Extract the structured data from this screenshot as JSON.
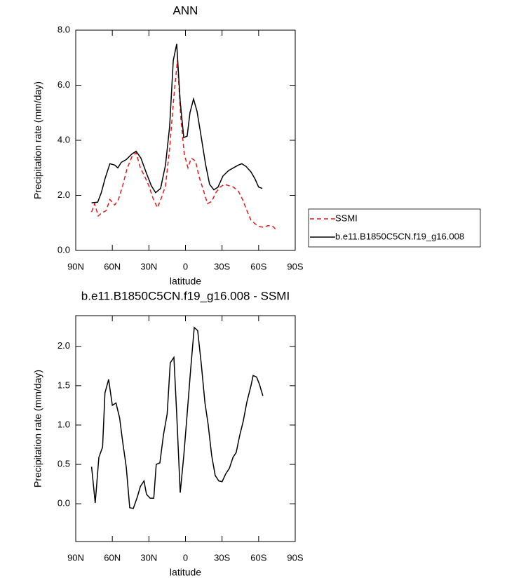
{
  "chart_data": [
    {
      "type": "line",
      "title": "ANN",
      "ylabel": "Precipitation rate (mm/day)",
      "xlabel": "latitude",
      "xlim": [
        90,
        -90
      ],
      "xticks": [
        {
          "value": 90,
          "label": "90N"
        },
        {
          "value": 60,
          "label": "60N"
        },
        {
          "value": 30,
          "label": "30N"
        },
        0,
        {
          "value": -30,
          "label": "30S"
        },
        {
          "value": -60,
          "label": "60S"
        },
        {
          "value": -90,
          "label": "90S"
        }
      ],
      "ylim": [
        0,
        8
      ],
      "yticks": [
        {
          "value": 0,
          "label": "0.0"
        },
        {
          "value": 2,
          "label": "2.0"
        },
        {
          "value": 4,
          "label": "4.0"
        },
        {
          "value": 6,
          "label": "6.0"
        },
        {
          "value": 8,
          "label": "8.0"
        }
      ],
      "legend": "right",
      "series": [
        {
          "name": "SSMI",
          "color": "#e41a1c",
          "dashed": true,
          "x": [
            77,
            74.5,
            71.6,
            69,
            65,
            62,
            58,
            55,
            51.5,
            48,
            44,
            40.5,
            37,
            33.6,
            30,
            26.7,
            23,
            19.8,
            16.4,
            13,
            9.5,
            6.6,
            3.8,
            1,
            -2,
            -4.7,
            -8.2,
            -11,
            -14.6,
            -18,
            -21.5,
            -24.9,
            -28.4,
            -31.8,
            -35.8,
            -39.3,
            -43.4,
            -46.8,
            -50.3,
            -53.7,
            -57,
            -60.6,
            -64,
            -67.6,
            -71,
            -74.4
          ],
          "values": [
            1.4,
            1.7,
            1.25,
            1.35,
            1.45,
            1.85,
            1.65,
            1.85,
            2.35,
            2.95,
            3.4,
            3.55,
            3.0,
            2.7,
            2.35,
            1.9,
            1.55,
            1.9,
            2.35,
            3.7,
            5.6,
            6.9,
            4.8,
            3.5,
            3.0,
            3.35,
            3.25,
            2.7,
            2.2,
            1.7,
            1.78,
            2.1,
            2.3,
            2.4,
            2.35,
            2.3,
            2.15,
            1.85,
            1.45,
            1.1,
            0.97,
            0.87,
            0.84,
            0.9,
            0.9,
            0.75
          ]
        },
        {
          "name": "b.e11.B1850C5CN.f19_g16.008",
          "color": "#000000",
          "dashed": false,
          "x": [
            77,
            72,
            69,
            66,
            62,
            58,
            55.5,
            52.6,
            48.6,
            44,
            40.5,
            36.5,
            32,
            28,
            24.5,
            20.4,
            16.4,
            13,
            10,
            7.2,
            4.3,
            1.4,
            -1.4,
            -3.7,
            -6.6,
            -9.5,
            -13,
            -16.4,
            -19.8,
            -23.3,
            -26.7,
            -30.7,
            -35.3,
            -39.3,
            -43.4,
            -46.2,
            -49.7,
            -53.7,
            -57,
            -60,
            -63
          ],
          "values": [
            1.73,
            1.75,
            2.1,
            2.6,
            3.15,
            3.1,
            3.0,
            3.2,
            3.3,
            3.5,
            3.6,
            3.35,
            2.8,
            2.35,
            2.1,
            2.25,
            3.1,
            4.5,
            6.9,
            7.5,
            5.4,
            4.1,
            4.15,
            5.0,
            5.5,
            5.05,
            4.1,
            3.15,
            2.4,
            2.2,
            2.3,
            2.7,
            2.9,
            3.0,
            3.1,
            3.15,
            3.05,
            2.85,
            2.6,
            2.3,
            2.25
          ]
        }
      ]
    },
    {
      "type": "line",
      "title": "b.e11.B1850C5CN.f19_g16.008 - SSMI",
      "ylabel": "Precipitation rate (mm/day)",
      "xlabel": "latitude",
      "xlim": [
        90,
        -90
      ],
      "xticks": [
        {
          "value": 90,
          "label": "90N"
        },
        {
          "value": 60,
          "label": "60N"
        },
        {
          "value": 30,
          "label": "30N"
        },
        0,
        {
          "value": -30,
          "label": "30S"
        },
        {
          "value": -60,
          "label": "60S"
        },
        {
          "value": -90,
          "label": "90S"
        }
      ],
      "ylim": [
        -0.48,
        2.39
      ],
      "yticks": [
        {
          "value": 0,
          "label": "0.0"
        },
        0.5,
        {
          "value": 1,
          "label": "1.0"
        },
        1.5,
        {
          "value": 2,
          "label": "2.0"
        }
      ],
      "series": [
        {
          "color": "#000000",
          "dashed": false,
          "x": [
            77,
            74,
            71,
            68,
            66,
            63,
            60,
            57,
            54,
            51.5,
            48.6,
            45.7,
            42.8,
            39.4,
            37,
            34,
            32,
            29,
            26,
            24,
            21,
            18,
            15,
            12.5,
            9.5,
            7.2,
            4.3,
            1.4,
            -1.4,
            -4.3,
            -7.2,
            -10,
            -13,
            -16,
            -18.6,
            -21.5,
            -24.4,
            -27.3,
            -30,
            -33,
            -36,
            -39,
            -41.6,
            -44.5,
            -47.4,
            -50.3,
            -53.7,
            -55.5,
            -58.3,
            -60.6,
            -63.5
          ],
          "values": [
            0.47,
            0.01,
            0.59,
            0.72,
            1.41,
            1.58,
            1.25,
            1.28,
            1.09,
            0.79,
            0.47,
            -0.05,
            -0.06,
            0.09,
            0.22,
            0.29,
            0.12,
            0.07,
            0.07,
            0.5,
            0.52,
            0.88,
            1.14,
            1.79,
            1.86,
            1.14,
            0.14,
            0.61,
            1.14,
            1.72,
            2.24,
            2.2,
            1.77,
            1.28,
            1.01,
            0.61,
            0.36,
            0.29,
            0.28,
            0.38,
            0.45,
            0.59,
            0.65,
            0.87,
            1.05,
            1.29,
            1.5,
            1.63,
            1.61,
            1.52,
            1.37
          ]
        }
      ]
    }
  ]
}
